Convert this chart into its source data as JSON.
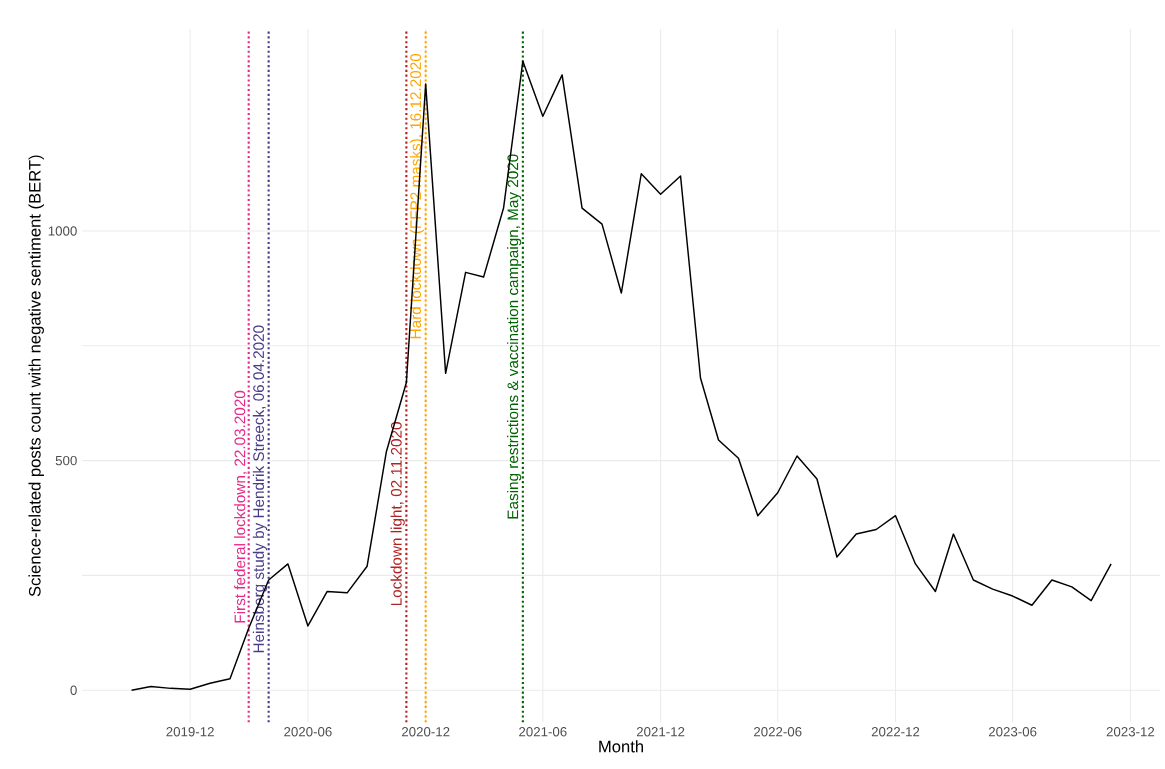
{
  "chart_data": {
    "type": "line",
    "xlabel": "Month",
    "ylabel": "Science-related posts count with negative sentiment (BERT)",
    "x": [
      "2019-09",
      "2019-10",
      "2019-11",
      "2019-12",
      "2020-01",
      "2020-02",
      "2020-03",
      "2020-04",
      "2020-05",
      "2020-06",
      "2020-07",
      "2020-08",
      "2020-09",
      "2020-10",
      "2020-11",
      "2020-12",
      "2021-01",
      "2021-02",
      "2021-03",
      "2021-04",
      "2021-05",
      "2021-06",
      "2021-07",
      "2021-08",
      "2021-09",
      "2021-10",
      "2021-11",
      "2021-12",
      "2022-01",
      "2022-02",
      "2022-03",
      "2022-04",
      "2022-05",
      "2022-06",
      "2022-07",
      "2022-08",
      "2022-09",
      "2022-10",
      "2022-11",
      "2022-12",
      "2023-01",
      "2023-02",
      "2023-03",
      "2023-04",
      "2023-05",
      "2023-06",
      "2023-07",
      "2023-08",
      "2023-09",
      "2023-10",
      "2023-11"
    ],
    "series": [
      {
        "color": "#000000",
        "values": [
          0,
          8,
          4,
          2,
          15,
          25,
          135,
          240,
          275,
          140,
          215,
          212,
          270,
          520,
          670,
          1320,
          690,
          910,
          900,
          1050,
          1370,
          1250,
          1340,
          1050,
          1015,
          865,
          1125,
          1080,
          1120,
          680,
          545,
          505,
          380,
          430,
          510,
          460,
          290,
          340,
          350,
          380,
          275,
          215,
          340,
          240,
          220,
          205,
          185,
          240,
          225,
          195,
          275
        ]
      }
    ],
    "xlim": [
      "2019-06-16",
      "2024-01-16"
    ],
    "ylim": [
      -70,
      1440
    ],
    "xticks": [
      "2019-12",
      "2020-06",
      "2020-12",
      "2021-06",
      "2021-12",
      "2022-06",
      "2022-12",
      "2023-06",
      "2023-12"
    ],
    "yticks": [
      0,
      500,
      1000
    ],
    "grid": true,
    "ref_lines": [
      {
        "axis": "x",
        "value": "2020-03",
        "label": "First federal lockdown, 22.03.2020",
        "color": "#e7298a",
        "line_style": "dotted"
      },
      {
        "axis": "x",
        "value": "2020-04",
        "label": "Heinsberg study by Hendrik Streeck, 06.04.2020",
        "color": "#483d8b",
        "line_style": "dotted"
      },
      {
        "axis": "x",
        "value": "2020-11",
        "label": "Lockdown light, 02.11.2020",
        "color": "#b22222",
        "line_style": "dotted"
      },
      {
        "axis": "x",
        "value": "2020-12",
        "label": "Hard lockdown (FFP2 masks), 16.12.2020",
        "color": "#ffa500",
        "line_style": "dotted"
      },
      {
        "axis": "x",
        "value": "2021-05",
        "label": "Easing restrictions & vaccination campaign, May 2020",
        "color": "#006400",
        "line_style": "dotted"
      }
    ]
  }
}
